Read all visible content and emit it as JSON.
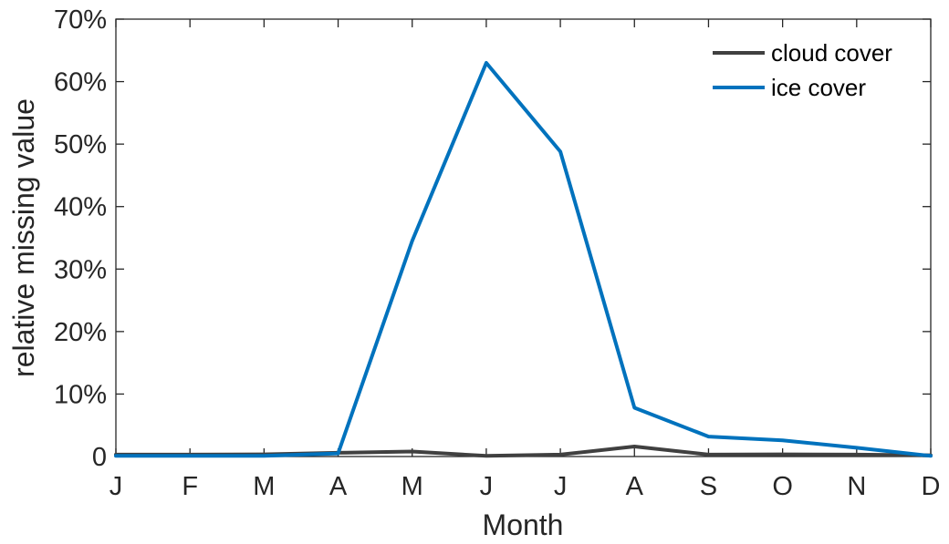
{
  "chart_data": {
    "type": "line",
    "title": "",
    "xlabel": "Month",
    "ylabel": "relative missing value",
    "categories": [
      "J",
      "F",
      "M",
      "A",
      "M",
      "J",
      "J",
      "A",
      "S",
      "O",
      "N",
      "D"
    ],
    "ylim": [
      0,
      70
    ],
    "yticks": [
      0,
      10,
      20,
      30,
      40,
      50,
      60,
      70
    ],
    "ytick_labels": [
      "0",
      "10%",
      "20%",
      "30%",
      "40%",
      "50%",
      "60%",
      "70%"
    ],
    "grid": false,
    "legend_position": "top-right",
    "series": [
      {
        "name": "cloud cover",
        "color": "#404040",
        "values": [
          0.3,
          0.3,
          0.35,
          0.6,
          0.8,
          0.1,
          0.3,
          1.6,
          0.3,
          0.35,
          0.3,
          0.2
        ]
      },
      {
        "name": "ice cover",
        "color": "#0072BD",
        "values": [
          0.1,
          0.1,
          0.1,
          0.5,
          34.5,
          63.0,
          48.8,
          7.8,
          3.2,
          2.6,
          1.4,
          0.1
        ]
      }
    ]
  }
}
